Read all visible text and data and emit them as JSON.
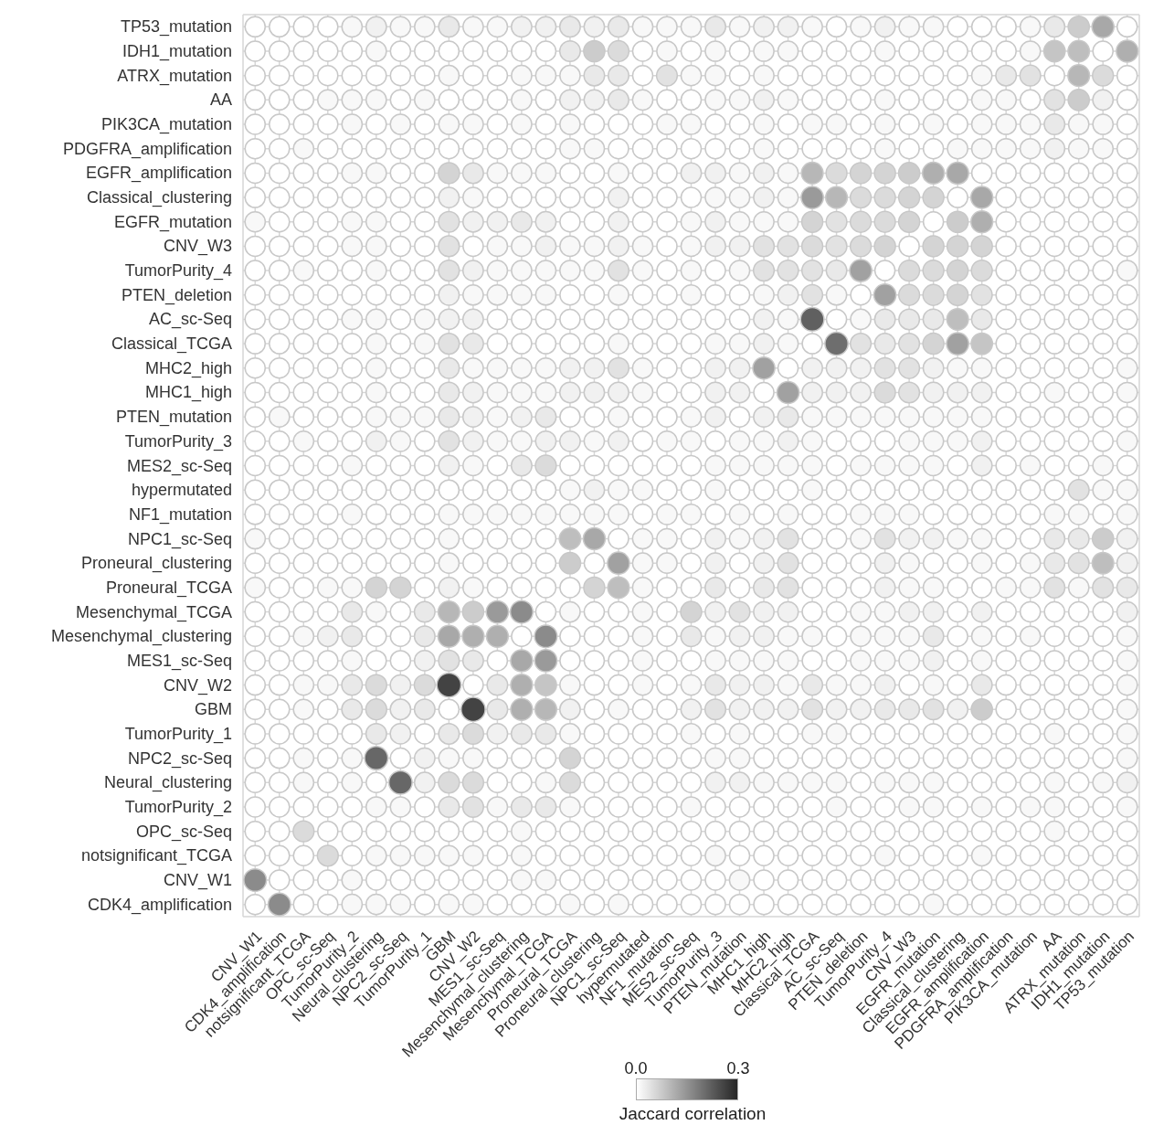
{
  "chart_data": {
    "type": "heatmap",
    "clabel": "Jaccard correlation",
    "clim": [
      0,
      0.3
    ],
    "cticks": [
      {
        "value": 0,
        "label": "0.0"
      },
      {
        "value": 0.3,
        "label": "0.3"
      }
    ],
    "grid": true,
    "categories": [
      "CNV_W1",
      "CDK4_amplification",
      "notsignificant_TCGA",
      "OPC_sc-Seq",
      "TumorPurity_2",
      "Neural_clustering",
      "NPC2_sc-Seq",
      "TumorPurity_1",
      "GBM",
      "CNV_W2",
      "MES1_sc-Seq",
      "Mesenchymal_clustering",
      "Mesenchymal_TCGA",
      "Proneural_TCGA",
      "Proneural_clustering",
      "NPC1_sc-Seq",
      "hypermutated",
      "NF1_mutation",
      "MES2_sc-Seq",
      "TumorPurity_3",
      "PTEN_mutation",
      "MHC1_high",
      "MHC2_high",
      "Classical_TCGA",
      "AC_sc-Seq",
      "PTEN_deletion",
      "TumorPurity_4",
      "CNV_W3",
      "EGFR_mutation",
      "Classical_clustering",
      "EGFR_amplification",
      "PDGFRA_amplification",
      "PIK3CA_mutation",
      "AA",
      "ATRX_mutation",
      "IDH1_mutation",
      "TP53_mutation"
    ],
    "y_categories": [
      "TP53_mutation",
      "IDH1_mutation",
      "ATRX_mutation",
      "AA",
      "PIK3CA_mutation",
      "PDGFRA_amplification",
      "EGFR_amplification",
      "Classical_clustering",
      "EGFR_mutation",
      "CNV_W3",
      "TumorPurity_4",
      "PTEN_deletion",
      "AC_sc-Seq",
      "Classical_TCGA",
      "MHC2_high",
      "MHC1_high",
      "PTEN_mutation",
      "TumorPurity_3",
      "MES2_sc-Seq",
      "hypermutated",
      "NF1_mutation",
      "NPC1_sc-Seq",
      "Proneural_clustering",
      "Proneural_TCGA",
      "Mesenchymal_TCGA",
      "Mesenchymal_clustering",
      "MES1_sc-Seq",
      "CNV_W2",
      "GBM",
      "TumorPurity_1",
      "NPC2_sc-Seq",
      "Neural_clustering",
      "TumorPurity_2",
      "OPC_sc-Seq",
      "notsignificant_TCGA",
      "CNV_W1",
      "CDK4_amplification"
    ],
    "cells": [
      [
        0,
        0,
        0,
        0,
        0.01,
        0.02,
        0.01,
        0.01,
        0.03,
        0.01,
        0.01,
        0.02,
        0.02,
        0.03,
        0.02,
        0.03,
        0.01,
        0.01,
        0.01,
        0.03,
        0.01,
        0.02,
        0.02,
        0.01,
        0,
        0.01,
        0.02,
        0.01,
        0.01,
        0,
        0,
        0,
        0.01,
        0.03,
        0.07,
        0.12,
        0
      ],
      [
        0,
        0,
        0,
        0,
        0,
        0.01,
        0,
        0,
        0,
        0,
        0,
        0,
        0,
        0.03,
        0.07,
        0.05,
        0,
        0.01,
        0,
        0.01,
        0,
        0.01,
        0.01,
        0,
        0,
        0,
        0.01,
        0,
        0,
        0,
        0,
        0,
        0.01,
        0.08,
        0.09,
        0,
        0.11
      ],
      [
        0,
        0,
        0,
        0,
        0,
        0,
        0,
        0,
        0.01,
        0,
        0,
        0.01,
        0.01,
        0.01,
        0.03,
        0.03,
        0,
        0.04,
        0.01,
        0.01,
        0,
        0.01,
        0,
        0,
        0,
        0,
        0,
        0,
        0,
        0,
        0.01,
        0.03,
        0.04,
        0,
        0.1,
        0.05,
        0
      ],
      [
        0,
        0,
        0,
        0.01,
        0.01,
        0.01,
        0,
        0.01,
        0,
        0,
        0,
        0.01,
        0,
        0.02,
        0.02,
        0.03,
        0.01,
        0,
        0,
        0.01,
        0.01,
        0.02,
        0.01,
        0,
        0,
        0,
        0.01,
        0,
        0,
        0,
        0.01,
        0.01,
        0,
        0.04,
        0.07,
        0.02,
        0
      ],
      [
        0,
        0,
        0,
        0,
        0.01,
        0,
        0.01,
        0,
        0.01,
        0.01,
        0,
        0.01,
        0,
        0.01,
        0,
        0,
        0,
        0.01,
        0.01,
        0,
        0,
        0.01,
        0,
        0.01,
        0.01,
        0,
        0.01,
        0,
        0.01,
        0,
        0.01,
        0.01,
        0.01,
        0.03,
        0.01,
        0.01,
        0
      ],
      [
        0,
        0,
        0.01,
        0,
        0,
        0,
        0,
        0,
        0,
        0,
        0,
        0,
        0,
        0.01,
        0.01,
        0,
        0,
        0,
        0,
        0,
        0,
        0.01,
        0,
        0,
        0,
        0,
        0.01,
        0,
        0,
        0.01,
        0.01,
        0.01,
        0.01,
        0.02,
        0.01,
        0.01,
        0
      ],
      [
        0,
        0,
        0,
        0,
        0.01,
        0.01,
        0,
        0,
        0.06,
        0.03,
        0.01,
        0.01,
        0.01,
        0,
        0,
        0.01,
        0,
        0,
        0.02,
        0.02,
        0.01,
        0.02,
        0.01,
        0.1,
        0.05,
        0.06,
        0.06,
        0.07,
        0.11,
        0.12,
        0,
        0,
        0,
        0,
        0,
        0,
        0
      ],
      [
        0,
        0,
        0,
        0,
        0,
        0,
        0,
        0,
        0.02,
        0.01,
        0,
        0,
        0,
        0,
        0,
        0.02,
        0,
        0,
        0,
        0.01,
        0.01,
        0.02,
        0.01,
        0.14,
        0.1,
        0.05,
        0.05,
        0.06,
        0.06,
        0,
        0.12,
        0,
        0,
        0,
        0,
        0,
        0
      ],
      [
        0.01,
        0,
        0,
        0,
        0.01,
        0.01,
        0,
        0,
        0.04,
        0.02,
        0.02,
        0.03,
        0.02,
        0,
        0,
        0.02,
        0,
        0,
        0.01,
        0.02,
        0.01,
        0.01,
        0.01,
        0.06,
        0.04,
        0.05,
        0.05,
        0.06,
        0,
        0.07,
        0.11,
        0,
        0,
        0,
        0,
        0,
        0
      ],
      [
        0,
        0,
        0,
        0,
        0.01,
        0.01,
        0,
        0,
        0.04,
        0,
        0.01,
        0.01,
        0.02,
        0.01,
        0.01,
        0.02,
        0.01,
        0,
        0.01,
        0.02,
        0.02,
        0.04,
        0.04,
        0.05,
        0.04,
        0.05,
        0.06,
        0,
        0.06,
        0.06,
        0.06,
        0,
        0,
        0,
        0,
        0,
        0
      ],
      [
        0,
        0,
        0.01,
        0,
        0,
        0.01,
        0,
        0,
        0.04,
        0.02,
        0.01,
        0.01,
        0.01,
        0.01,
        0.01,
        0.04,
        0.01,
        0,
        0.01,
        0,
        0.01,
        0.04,
        0.04,
        0.04,
        0.03,
        0.13,
        0,
        0.05,
        0.05,
        0.06,
        0.05,
        0,
        0,
        0,
        0,
        0,
        0.01
      ],
      [
        0,
        0,
        0,
        0,
        0,
        0,
        0,
        0,
        0.02,
        0.01,
        0.01,
        0.01,
        0.01,
        0,
        0,
        0.01,
        0,
        0,
        0.01,
        0,
        0,
        0.01,
        0.02,
        0.04,
        0.01,
        0,
        0.13,
        0.05,
        0.05,
        0.06,
        0.04,
        0,
        0,
        0,
        0,
        0,
        0
      ],
      [
        0,
        0,
        0,
        0,
        0.01,
        0.01,
        0,
        0.01,
        0.02,
        0.02,
        0,
        0,
        0,
        0,
        0,
        0,
        0,
        0,
        0,
        0,
        0,
        0.02,
        0.01,
        0.22,
        0,
        0.01,
        0.03,
        0.03,
        0.03,
        0.09,
        0.03,
        0,
        0,
        0,
        0,
        0,
        0
      ],
      [
        0,
        0,
        0,
        0,
        0,
        0.01,
        0,
        0.01,
        0.04,
        0.03,
        0,
        0,
        0,
        0,
        0,
        0.01,
        0,
        0,
        0,
        0.01,
        0.01,
        0.02,
        0.01,
        0,
        0.2,
        0.04,
        0.03,
        0.04,
        0.06,
        0.13,
        0.08,
        0,
        0,
        0,
        0,
        0,
        0
      ],
      [
        0,
        0,
        0,
        0,
        0,
        0.01,
        0,
        0,
        0.03,
        0.01,
        0.01,
        0.01,
        0.01,
        0.02,
        0.02,
        0.04,
        0.01,
        0,
        0,
        0.02,
        0.02,
        0.13,
        0,
        0.02,
        0.02,
        0.02,
        0.04,
        0.04,
        0.02,
        0.01,
        0.01,
        0,
        0,
        0,
        0,
        0,
        0.01
      ],
      [
        0,
        0,
        0,
        0,
        0,
        0.01,
        0,
        0,
        0.03,
        0.02,
        0.01,
        0.01,
        0.01,
        0.02,
        0.02,
        0.02,
        0.01,
        0,
        0,
        0.02,
        0.02,
        0,
        0.13,
        0.02,
        0.02,
        0.02,
        0.05,
        0.04,
        0.02,
        0.02,
        0.02,
        0,
        0,
        0.01,
        0,
        0,
        0.01
      ],
      [
        0,
        0.01,
        0,
        0,
        0,
        0.01,
        0.01,
        0.01,
        0.03,
        0.02,
        0.01,
        0.02,
        0.03,
        0,
        0,
        0.01,
        0,
        0,
        0.01,
        0.02,
        0,
        0.02,
        0.03,
        0.01,
        0.01,
        0.01,
        0.01,
        0.01,
        0.01,
        0.01,
        0.01,
        0,
        0,
        0,
        0,
        0,
        0
      ],
      [
        0,
        0,
        0.01,
        0,
        0,
        0.02,
        0.01,
        0,
        0.04,
        0.02,
        0.01,
        0.01,
        0.02,
        0.02,
        0.01,
        0.02,
        0,
        0.01,
        0.01,
        0,
        0.01,
        0.01,
        0.02,
        0.01,
        0,
        0,
        0,
        0.01,
        0.01,
        0.01,
        0.02,
        0,
        0,
        0,
        0,
        0,
        0.01
      ],
      [
        0,
        0,
        0,
        0,
        0.01,
        0,
        0,
        0,
        0.02,
        0.01,
        0,
        0.03,
        0.05,
        0,
        0,
        0,
        0,
        0,
        0,
        0.01,
        0.01,
        0.01,
        0.01,
        0.01,
        0,
        0.01,
        0.01,
        0.01,
        0.01,
        0,
        0.02,
        0,
        0.01,
        0,
        0,
        0.01,
        0
      ],
      [
        0,
        0,
        0,
        0,
        0,
        0,
        0,
        0,
        0,
        0,
        0,
        0,
        0,
        0.01,
        0.02,
        0.01,
        0.01,
        0,
        0,
        0.01,
        0,
        0,
        0,
        0.01,
        0,
        0,
        0,
        0,
        0,
        0,
        0,
        0,
        0,
        0,
        0.04,
        0.01,
        0.01
      ],
      [
        0,
        0,
        0,
        0,
        0.01,
        0,
        0,
        0,
        0.01,
        0.01,
        0.01,
        0.01,
        0.01,
        0.01,
        0.01,
        0.01,
        0,
        0.01,
        0.01,
        0,
        0.01,
        0,
        0.01,
        0,
        0,
        0.01,
        0.01,
        0.01,
        0,
        0,
        0,
        0,
        0,
        0.01,
        0.01,
        0,
        0.01
      ],
      [
        0.01,
        0,
        0,
        0,
        0,
        0,
        0,
        0,
        0.01,
        0,
        0,
        0,
        0,
        0.09,
        0.12,
        0,
        0.01,
        0.01,
        0,
        0.02,
        0.01,
        0.02,
        0.04,
        0,
        0,
        0.01,
        0.04,
        0.02,
        0.02,
        0.01,
        0.01,
        0,
        0,
        0.03,
        0.03,
        0.07,
        0.02
      ],
      [
        0,
        0,
        0,
        0,
        0,
        0,
        0,
        0,
        0.01,
        0,
        0,
        0,
        0,
        0.07,
        0,
        0.13,
        0.01,
        0.01,
        0,
        0.02,
        0,
        0.02,
        0.04,
        0,
        0,
        0,
        0.02,
        0.01,
        0,
        0,
        0.01,
        0,
        0.01,
        0.03,
        0.04,
        0.09,
        0.02
      ],
      [
        0.01,
        0,
        0,
        0.01,
        0.01,
        0.06,
        0.06,
        0,
        0.02,
        0.01,
        0,
        0,
        0,
        0,
        0.06,
        0.09,
        0.01,
        0,
        0,
        0.03,
        0,
        0.03,
        0.04,
        0,
        0,
        0,
        0.02,
        0.01,
        0.01,
        0,
        0,
        0.01,
        0.01,
        0.04,
        0.01,
        0.04,
        0.03
      ],
      [
        0,
        0,
        0,
        0,
        0.03,
        0.01,
        0,
        0.03,
        0.1,
        0.07,
        0.14,
        0.16,
        0,
        0.01,
        0,
        0,
        0.01,
        0,
        0.06,
        0.02,
        0.04,
        0.02,
        0.02,
        0,
        0,
        0.01,
        0.01,
        0.02,
        0.02,
        0,
        0.02,
        0,
        0,
        0,
        0,
        0,
        0.02
      ],
      [
        0,
        0,
        0.01,
        0.02,
        0.03,
        0,
        0,
        0.03,
        0.12,
        0.11,
        0.11,
        0,
        0.16,
        0,
        0,
        0,
        0.01,
        0,
        0.03,
        0.01,
        0.02,
        0.02,
        0.01,
        0.01,
        0,
        0.01,
        0.01,
        0.01,
        0.03,
        0,
        0.01,
        0,
        0.01,
        0,
        0,
        0,
        0.01
      ],
      [
        0,
        0,
        0,
        0,
        0.01,
        0,
        0,
        0.02,
        0.04,
        0.03,
        0,
        0.12,
        0.14,
        0,
        0,
        0,
        0.01,
        0,
        0,
        0.01,
        0.01,
        0.01,
        0.01,
        0,
        0,
        0.01,
        0.01,
        0.01,
        0.02,
        0,
        0.01,
        0,
        0,
        0,
        0,
        0,
        0.01
      ],
      [
        0,
        0,
        0.01,
        0.01,
        0.03,
        0.05,
        0.02,
        0.05,
        0.26,
        0,
        0.03,
        0.11,
        0.08,
        0.01,
        0,
        0,
        0.01,
        0,
        0.01,
        0.03,
        0.02,
        0.02,
        0.01,
        0.03,
        0.01,
        0.01,
        0.02,
        0,
        0.01,
        0,
        0.03,
        0,
        0,
        0,
        0,
        0,
        0.01
      ],
      [
        0,
        0,
        0.01,
        0,
        0.03,
        0.05,
        0.02,
        0.03,
        0,
        0.26,
        0.03,
        0.11,
        0.1,
        0.02,
        0,
        0.01,
        0,
        0,
        0.02,
        0.04,
        0.02,
        0.02,
        0.02,
        0.04,
        0.02,
        0.02,
        0.03,
        0.03,
        0.04,
        0.02,
        0.07,
        0,
        0,
        0,
        0,
        0,
        0.01
      ],
      [
        0,
        0,
        0,
        0,
        0,
        0.03,
        0.02,
        0,
        0.03,
        0.05,
        0.02,
        0.03,
        0.03,
        0.01,
        0,
        0,
        0,
        0,
        0.01,
        0,
        0.01,
        0,
        0,
        0.01,
        0.01,
        0,
        0,
        0,
        0,
        0,
        0,
        0,
        0,
        0.01,
        0,
        0,
        0.01
      ],
      [
        0,
        0,
        0.01,
        0,
        0.01,
        0.21,
        0,
        0.02,
        0.01,
        0.01,
        0,
        0,
        0,
        0.06,
        0,
        0,
        0,
        0,
        0,
        0.01,
        0.01,
        0,
        0,
        0,
        0,
        0,
        0,
        0,
        0,
        0,
        0,
        0,
        0,
        0,
        0,
        0,
        0.01
      ],
      [
        0,
        0,
        0.01,
        0,
        0.01,
        0,
        0.21,
        0.02,
        0.05,
        0.05,
        0,
        0,
        0.01,
        0.05,
        0,
        0,
        0,
        0,
        0,
        0.02,
        0.02,
        0.01,
        0.01,
        0.01,
        0.01,
        0,
        0.01,
        0.01,
        0.01,
        0,
        0,
        0,
        0,
        0.01,
        0,
        0.01,
        0.02
      ],
      [
        0,
        0,
        0,
        0,
        0,
        0.01,
        0.01,
        0,
        0.03,
        0.04,
        0.01,
        0.03,
        0.03,
        0.01,
        0,
        0,
        0,
        0,
        0.01,
        0,
        0,
        0,
        0,
        0,
        0.01,
        0,
        0,
        0.01,
        0.01,
        0,
        0.01,
        0,
        0.01,
        0.01,
        0,
        0,
        0.01
      ],
      [
        0,
        0,
        0.05,
        0,
        0,
        0,
        0,
        0,
        0,
        0,
        0,
        0.01,
        0,
        0,
        0,
        0,
        0,
        0,
        0,
        0,
        0,
        0,
        0,
        0,
        0,
        0,
        0,
        0,
        0,
        0,
        0,
        0,
        0,
        0.01,
        0,
        0,
        0
      ],
      [
        0,
        0,
        0,
        0.05,
        0,
        0.01,
        0.01,
        0.01,
        0.01,
        0.01,
        0,
        0.01,
        0,
        0,
        0,
        0,
        0,
        0,
        0,
        0.01,
        0,
        0,
        0,
        0,
        0,
        0,
        0.01,
        0,
        0,
        0,
        0.01,
        0,
        0,
        0,
        0,
        0,
        0
      ],
      [
        0.16,
        0,
        0,
        0,
        0.01,
        0,
        0,
        0,
        0,
        0,
        0,
        0.01,
        0.01,
        0,
        0,
        0,
        0,
        0,
        0,
        0,
        0.01,
        0,
        0,
        0,
        0,
        0,
        0,
        0,
        0,
        0,
        0,
        0,
        0,
        0,
        0,
        0,
        0
      ],
      [
        0,
        0.16,
        0,
        0,
        0.01,
        0.01,
        0.01,
        0,
        0.01,
        0.01,
        0,
        0,
        0,
        0.01,
        0,
        0.01,
        0,
        0,
        0,
        0,
        0,
        0,
        0,
        0,
        0,
        0,
        0,
        0,
        0.01,
        0,
        0,
        0,
        0,
        0,
        0,
        0,
        0
      ]
    ]
  }
}
